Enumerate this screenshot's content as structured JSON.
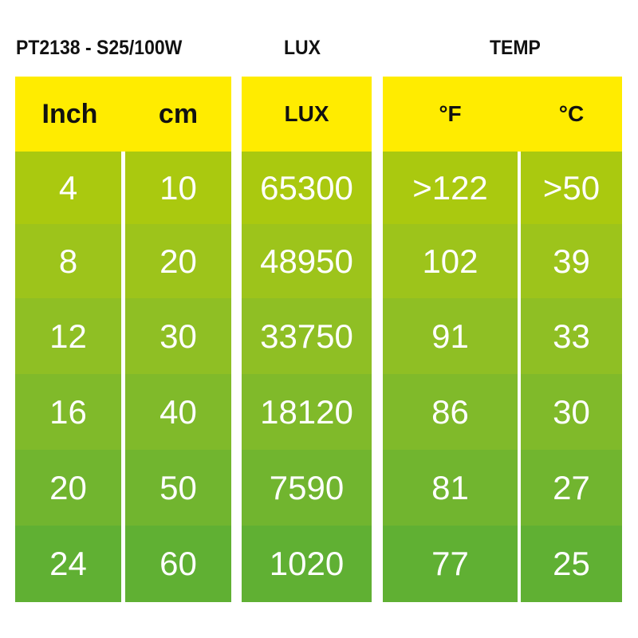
{
  "titles": {
    "product": "PT2138 - S25/100W",
    "lux": "LUX",
    "temp": "TEMP"
  },
  "columns": [
    {
      "header": "Inch",
      "values": [
        "4",
        "8",
        "12",
        "16",
        "20",
        "24"
      ]
    },
    {
      "header": "cm",
      "values": [
        "10",
        "20",
        "30",
        "40",
        "50",
        "60"
      ]
    },
    {
      "header": "LUX",
      "values": [
        "65300",
        "48950",
        "33750",
        "18120",
        "7590",
        "1020"
      ]
    },
    {
      "header": "°F",
      "values": [
        ">122",
        "102",
        "91",
        "86",
        "81",
        "77"
      ]
    },
    {
      "header": "°C",
      "values": [
        ">50",
        "39",
        "33",
        "30",
        "27",
        "25"
      ]
    }
  ],
  "colors": {
    "header": "#ffec00",
    "row_top": "#aac90f",
    "row_bottom": "#60b033"
  }
}
